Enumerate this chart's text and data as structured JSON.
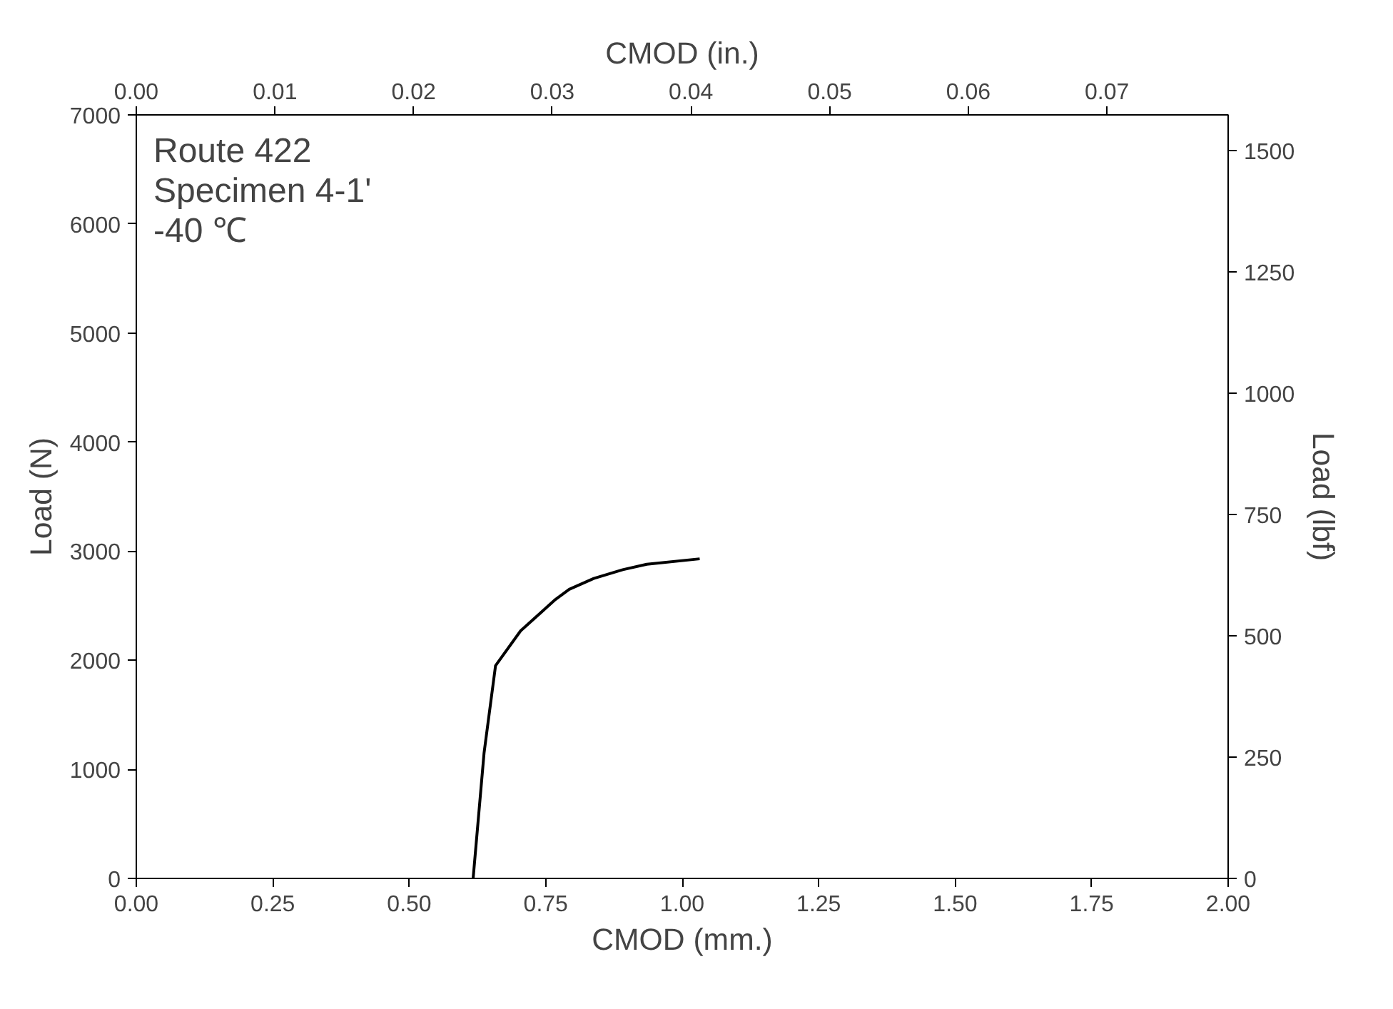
{
  "chart_data": {
    "type": "line",
    "xlabel": "CMOD (mm.)",
    "ylabel": "Load (N)",
    "y2label": "Load (lbf)",
    "x2label": "CMOD (in.)",
    "annotations": [
      "Route 422",
      "Specimen 4-1'",
      "-40 ℃"
    ],
    "x": [
      0.617,
      0.637,
      0.658,
      0.704,
      0.766,
      0.793,
      0.838,
      0.891,
      0.935,
      1.032
    ],
    "series": [
      {
        "color": "#000000",
        "values": [
          0,
          1150,
          1950,
          2270,
          2550,
          2650,
          2750,
          2830,
          2880,
          2930
        ]
      }
    ],
    "xlim": [
      0,
      2
    ],
    "xticks": [
      {
        "value": 0,
        "label": "0.00"
      },
      {
        "value": 0.25,
        "label": "0.25"
      },
      {
        "value": 0.5,
        "label": "0.50"
      },
      {
        "value": 0.75,
        "label": "0.75"
      },
      {
        "value": 1,
        "label": "1.00"
      },
      {
        "value": 1.25,
        "label": "1.25"
      },
      {
        "value": 1.5,
        "label": "1.50"
      },
      {
        "value": 1.75,
        "label": "1.75"
      },
      {
        "value": 2,
        "label": "2.00"
      }
    ],
    "ylim": [
      0,
      7000
    ],
    "yticks": [
      0,
      1000,
      2000,
      3000,
      4000,
      5000,
      6000,
      7000
    ],
    "x2lim": [
      0,
      0.07874
    ],
    "x2ticks": [
      {
        "value": 0,
        "label": "0.00"
      },
      {
        "value": 0.01,
        "label": "0.01"
      },
      {
        "value": 0.02,
        "label": "0.02"
      },
      {
        "value": 0.03,
        "label": "0.03"
      },
      {
        "value": 0.04,
        "label": "0.04"
      },
      {
        "value": 0.05,
        "label": "0.05"
      },
      {
        "value": 0.06,
        "label": "0.06"
      },
      {
        "value": 0.07,
        "label": "0.07"
      }
    ],
    "y2lim": [
      0,
      1573.7
    ],
    "y2ticks": [
      0,
      250,
      500,
      750,
      1000,
      1250,
      1500
    ],
    "grid": false,
    "marker": "none",
    "line_style": "solid"
  }
}
